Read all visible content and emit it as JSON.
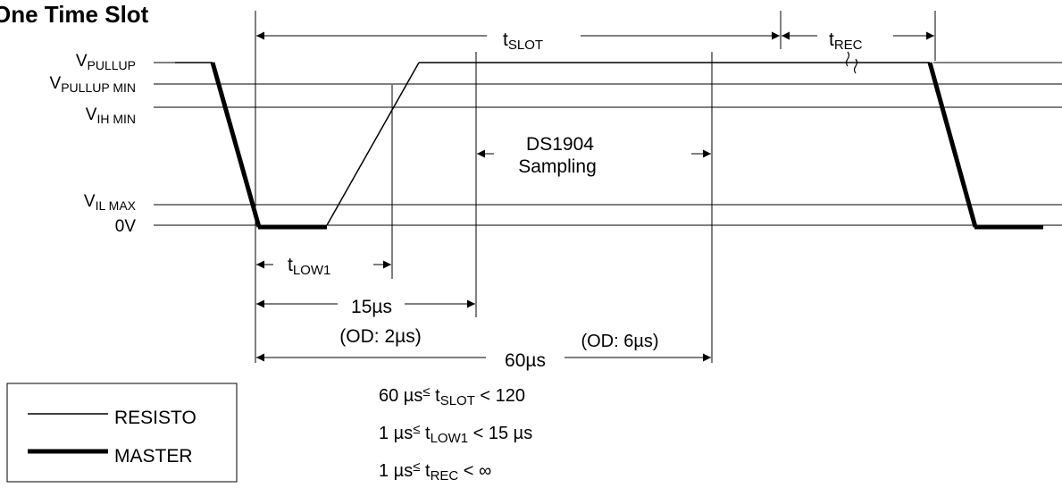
{
  "title": "One Time Slot",
  "levels": {
    "v_pullup": {
      "base": "V",
      "sub": "PULLUP"
    },
    "v_pullup_min": {
      "base": "V",
      "sub": "PULLUP MIN"
    },
    "v_ih_min": {
      "base": "V",
      "sub": "IH MIN"
    },
    "v_il_max": {
      "base": "V",
      "sub": "IL MAX"
    },
    "zero": "0V"
  },
  "timing": {
    "t_slot": {
      "base": "t",
      "sub": "SLOT"
    },
    "t_rec": {
      "base": "t",
      "sub": "REC"
    },
    "t_low1": {
      "base": "t",
      "sub": "LOW1"
    },
    "sampling_line1": "DS1904",
    "sampling_line2": "Sampling",
    "t15": "15µs",
    "t15_od": "(OD: 2µs)",
    "t60": "60µs",
    "t60_od": "(OD: 6µs)"
  },
  "constraints": [
    {
      "pre": "60 µs",
      "rel": "≤",
      "base": "t",
      "sub": "SLOT",
      "post": " < 120"
    },
    {
      "pre": "1 µs",
      "rel": "≤",
      "base": "t",
      "sub": "LOW1",
      "post": " < 15 µs"
    },
    {
      "pre": "1 µs",
      "rel": "≤",
      "base": "t",
      "sub": "REC",
      "post": " < ∞"
    }
  ],
  "legend": {
    "resistor": "RESISTO",
    "master": "MASTER"
  }
}
